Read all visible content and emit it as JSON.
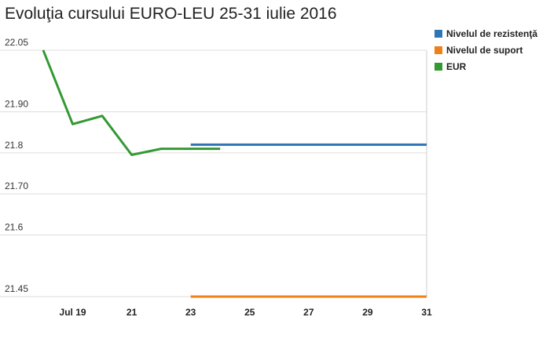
{
  "chart_data": {
    "type": "line",
    "title": "Evoluţia cursului EURO-LEU 25-31 iulie 2016",
    "xlabel": "",
    "ylabel": "",
    "x_ticks": [
      {
        "date": "2016-07-19",
        "label": "Jul 19"
      },
      {
        "date": "2016-07-21",
        "label": "21"
      },
      {
        "date": "2016-07-23",
        "label": "23"
      },
      {
        "date": "2016-07-25",
        "label": "25"
      },
      {
        "date": "2016-07-27",
        "label": "27"
      },
      {
        "date": "2016-07-29",
        "label": "29"
      },
      {
        "date": "2016-07-31",
        "label": "31"
      }
    ],
    "xlim": [
      "2016-07-18",
      "2016-07-31"
    ],
    "y_ticks": [
      {
        "value": 21.45,
        "label": "21.45"
      },
      {
        "value": 21.6,
        "label": "21.6"
      },
      {
        "value": 21.7,
        "label": "21.70"
      },
      {
        "value": 21.8,
        "label": "21.8"
      },
      {
        "value": 21.9,
        "label": "21.90"
      },
      {
        "value": 22.05,
        "label": "22.05"
      }
    ],
    "ylim": [
      21.45,
      22.05
    ],
    "grid": true,
    "legend_position": "right",
    "series": [
      {
        "name": "Nivelul de rezistenţă",
        "color": "#2e75b6",
        "points": [
          {
            "x": "2016-07-23",
            "y": 21.82
          },
          {
            "x": "2016-07-31",
            "y": 21.82
          }
        ]
      },
      {
        "name": "Nivelul de suport",
        "color": "#f07f16",
        "points": [
          {
            "x": "2016-07-23",
            "y": 21.45
          },
          {
            "x": "2016-07-31",
            "y": 21.45
          }
        ]
      },
      {
        "name": "EUR",
        "color": "#339933",
        "points": [
          {
            "x": "2016-07-18",
            "y": 22.05
          },
          {
            "x": "2016-07-19",
            "y": 21.87
          },
          {
            "x": "2016-07-20",
            "y": 21.89
          },
          {
            "x": "2016-07-21",
            "y": 21.795
          },
          {
            "x": "2016-07-22",
            "y": 21.81
          },
          {
            "x": "2016-07-23",
            "y": 21.81
          },
          {
            "x": "2016-07-24",
            "y": 21.81
          }
        ]
      }
    ]
  }
}
